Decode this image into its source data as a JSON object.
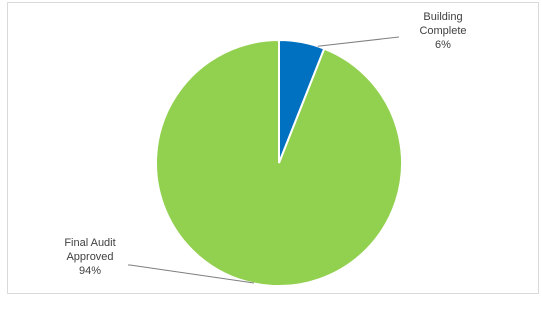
{
  "chart_data": {
    "type": "pie",
    "title": "",
    "slices": [
      {
        "label_lines": [
          "Building",
          "Complete"
        ],
        "value_label": "6%",
        "value": 6,
        "color": "#0070c0"
      },
      {
        "label_lines": [
          "Final Audit",
          "Approved"
        ],
        "value_label": "94%",
        "value": 94,
        "color": "#92d050"
      }
    ],
    "start_angle_deg": 0,
    "direction": "clockwise",
    "legend": "none",
    "slice_border_color": "#ffffff",
    "leader_line_color": "#7f7f7f"
  }
}
